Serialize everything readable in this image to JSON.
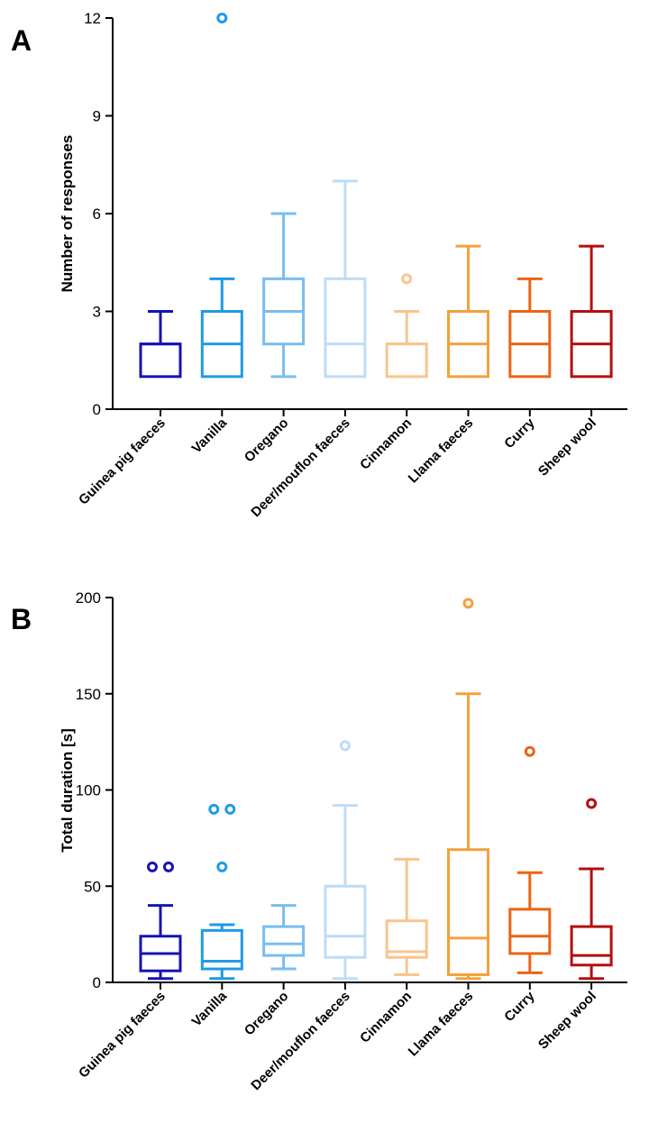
{
  "chart_data": [
    {
      "type": "boxplot",
      "panel_label": "A",
      "ylabel": "Number of responses",
      "xlabel": "",
      "ylim": [
        0,
        12
      ],
      "yticks": [
        0,
        3,
        6,
        9,
        12
      ],
      "categories": [
        "Guinea pig faeces",
        "Vanilla",
        "Oregano",
        "Deer/mouflon faeces",
        "Cinnamon",
        "Llama faeces",
        "Curry",
        "Sheep wool"
      ],
      "colors": [
        "#1414b4",
        "#1e9be6",
        "#78bdf0",
        "#bedcf5",
        "#fac48c",
        "#f5a03c",
        "#eb6414",
        "#b40f0f"
      ],
      "boxes": [
        {
          "min": 1,
          "q1": 1,
          "median": 2,
          "q3": 2,
          "max": 3,
          "outliers": []
        },
        {
          "min": 1,
          "q1": 1,
          "median": 2,
          "q3": 3,
          "max": 4,
          "outliers": [
            12
          ]
        },
        {
          "min": 1,
          "q1": 2,
          "median": 3,
          "q3": 4,
          "max": 6,
          "outliers": []
        },
        {
          "min": 1,
          "q1": 1,
          "median": 2,
          "q3": 4,
          "max": 7,
          "outliers": []
        },
        {
          "min": 1,
          "q1": 1,
          "median": 2,
          "q3": 2,
          "max": 3,
          "outliers": [
            4
          ]
        },
        {
          "min": 1,
          "q1": 1,
          "median": 2,
          "q3": 3,
          "max": 5,
          "outliers": []
        },
        {
          "min": 1,
          "q1": 1,
          "median": 2,
          "q3": 3,
          "max": 4,
          "outliers": []
        },
        {
          "min": 1,
          "q1": 1,
          "median": 2,
          "q3": 3,
          "max": 5,
          "outliers": []
        }
      ]
    },
    {
      "type": "boxplot",
      "panel_label": "B",
      "ylabel": "Total duration [s]",
      "xlabel": "",
      "ylim": [
        0,
        200
      ],
      "yticks": [
        0,
        50,
        100,
        150,
        200
      ],
      "categories": [
        "Guinea pig faeces",
        "Vanilla",
        "Oregano",
        "Deer/mouflon faeces",
        "Cinnamon",
        "Llama faeces",
        "Curry",
        "Sheep wool"
      ],
      "colors": [
        "#1414b4",
        "#1e9be6",
        "#78bdf0",
        "#bedcf5",
        "#fac48c",
        "#f5a03c",
        "#eb6414",
        "#b40f0f"
      ],
      "boxes": [
        {
          "min": 2,
          "q1": 6,
          "median": 15,
          "q3": 24,
          "max": 40,
          "outliers": [
            60,
            60
          ]
        },
        {
          "min": 2,
          "q1": 7,
          "median": 11,
          "q3": 27,
          "max": 30,
          "outliers": [
            60,
            90,
            90
          ]
        },
        {
          "min": 7,
          "q1": 14,
          "median": 20,
          "q3": 29,
          "max": 40,
          "outliers": []
        },
        {
          "min": 2,
          "q1": 13,
          "median": 24,
          "q3": 50,
          "max": 92,
          "outliers": [
            123
          ]
        },
        {
          "min": 4,
          "q1": 13,
          "median": 16,
          "q3": 32,
          "max": 64,
          "outliers": []
        },
        {
          "min": 2,
          "q1": 4,
          "median": 23,
          "q3": 69,
          "max": 150,
          "outliers": [
            197
          ]
        },
        {
          "min": 5,
          "q1": 15,
          "median": 24,
          "q3": 38,
          "max": 57,
          "outliers": [
            120
          ]
        },
        {
          "min": 2,
          "q1": 9,
          "median": 14,
          "q3": 29,
          "max": 59,
          "outliers": [
            93
          ]
        }
      ]
    }
  ]
}
